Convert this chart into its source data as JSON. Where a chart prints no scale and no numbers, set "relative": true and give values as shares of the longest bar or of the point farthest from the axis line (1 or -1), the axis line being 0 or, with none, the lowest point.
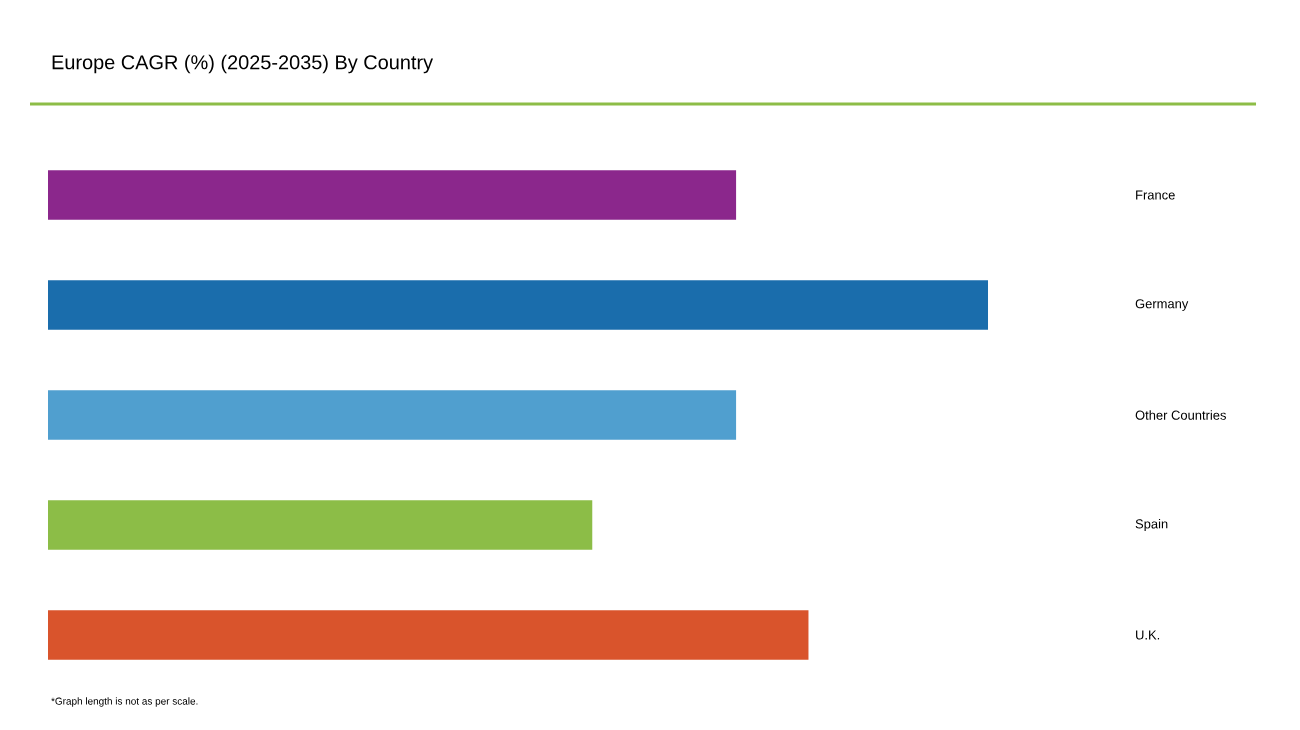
{
  "chart_data": {
    "type": "bar",
    "orientation": "horizontal",
    "relative": true,
    "title": "Europe CAGR (%) (2025-2035) By Country",
    "categories": [
      "France",
      "Germany",
      "Other Countries",
      "Spain",
      "U.K."
    ],
    "values": [
      0.732,
      1,
      0.732,
      0.579,
      0.809
    ],
    "colors": [
      "#8b278c",
      "#1a6dac",
      "#509fcf",
      "#8cbd47",
      "#d9542c"
    ],
    "annotations": [
      "*Graph length is not as per scale."
    ]
  }
}
